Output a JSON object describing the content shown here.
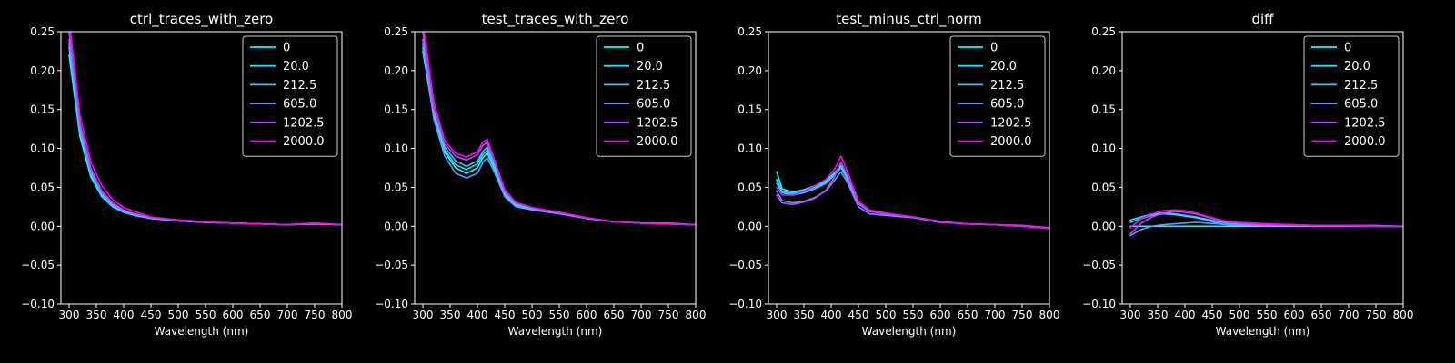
{
  "chart_data": [
    {
      "type": "line",
      "title": "ctrl_traces_with_zero",
      "xlabel": "Wavelength (nm)",
      "ylabel": "",
      "xlim": [
        285,
        800
      ],
      "ylim": [
        -0.1,
        0.25
      ],
      "xticks": [
        300,
        350,
        400,
        450,
        500,
        550,
        600,
        650,
        700,
        750,
        800
      ],
      "xtick_labels": [
        "300",
        "350",
        "400",
        "450",
        "500",
        "550",
        "600",
        "650",
        "700",
        "750",
        "800"
      ],
      "yticks": [
        -0.1,
        -0.05,
        0.0,
        0.05,
        0.1,
        0.15,
        0.2,
        0.25
      ],
      "ytick_labels": [
        "−0.10",
        "−0.05",
        "0.00",
        "0.05",
        "0.10",
        "0.15",
        "0.20",
        "0.25"
      ],
      "legend_position": "top-right",
      "x": [
        300,
        320,
        340,
        360,
        380,
        400,
        420,
        450,
        500,
        550,
        600,
        650,
        700,
        750,
        800
      ],
      "series": [
        {
          "name": "0",
          "color": "#00ffff",
          "values": [
            0.22,
            0.115,
            0.063,
            0.038,
            0.025,
            0.018,
            0.014,
            0.01,
            0.007,
            0.005,
            0.004,
            0.003,
            0.002,
            0.003,
            0.002
          ]
        },
        {
          "name": "20.0",
          "color": "#1ce3ff",
          "values": [
            0.23,
            0.12,
            0.066,
            0.04,
            0.026,
            0.019,
            0.015,
            0.01,
            0.007,
            0.005,
            0.004,
            0.003,
            0.002,
            0.003,
            0.002
          ]
        },
        {
          "name": "212.5",
          "color": "#39c6ff",
          "values": [
            0.235,
            0.123,
            0.068,
            0.041,
            0.027,
            0.019,
            0.015,
            0.011,
            0.007,
            0.005,
            0.004,
            0.003,
            0.002,
            0.003,
            0.002
          ]
        },
        {
          "name": "605.0",
          "color": "#6e91ff",
          "values": [
            0.24,
            0.126,
            0.07,
            0.042,
            0.028,
            0.02,
            0.016,
            0.011,
            0.008,
            0.005,
            0.004,
            0.003,
            0.002,
            0.003,
            0.002
          ]
        },
        {
          "name": "1202.5",
          "color": "#b24dff",
          "values": [
            0.25,
            0.132,
            0.074,
            0.045,
            0.03,
            0.021,
            0.016,
            0.011,
            0.008,
            0.005,
            0.004,
            0.003,
            0.002,
            0.004,
            0.002
          ]
        },
        {
          "name": "2000.0",
          "color": "#ff00ff",
          "values": [
            0.265,
            0.142,
            0.082,
            0.052,
            0.034,
            0.024,
            0.019,
            0.012,
            0.008,
            0.006,
            0.004,
            0.003,
            0.002,
            0.004,
            0.002
          ]
        }
      ]
    },
    {
      "type": "line",
      "title": "test_traces_with_zero",
      "xlabel": "Wavelength (nm)",
      "ylabel": "",
      "xlim": [
        285,
        800
      ],
      "ylim": [
        -0.1,
        0.25
      ],
      "xticks": [
        300,
        350,
        400,
        450,
        500,
        550,
        600,
        650,
        700,
        750,
        800
      ],
      "xtick_labels": [
        "300",
        "350",
        "400",
        "450",
        "500",
        "550",
        "600",
        "650",
        "700",
        "750",
        "800"
      ],
      "yticks": [
        -0.1,
        -0.05,
        0.0,
        0.05,
        0.1,
        0.15,
        0.2,
        0.25
      ],
      "ytick_labels": [
        "−0.10",
        "−0.05",
        "0.00",
        "0.05",
        "0.10",
        "0.15",
        "0.20",
        "0.25"
      ],
      "legend_position": "top-right",
      "x": [
        300,
        320,
        340,
        360,
        380,
        400,
        410,
        418,
        430,
        450,
        470,
        500,
        550,
        600,
        650,
        700,
        750,
        800
      ],
      "series": [
        {
          "name": "0",
          "color": "#00ffff",
          "values": [
            0.225,
            0.14,
            0.095,
            0.075,
            0.068,
            0.075,
            0.088,
            0.094,
            0.075,
            0.04,
            0.027,
            0.022,
            0.017,
            0.01,
            0.006,
            0.004,
            0.003,
            0.002
          ]
        },
        {
          "name": "20.0",
          "color": "#1ce3ff",
          "values": [
            0.23,
            0.145,
            0.098,
            0.079,
            0.073,
            0.08,
            0.092,
            0.098,
            0.078,
            0.042,
            0.028,
            0.022,
            0.017,
            0.01,
            0.006,
            0.004,
            0.003,
            0.002
          ]
        },
        {
          "name": "212.5",
          "color": "#39c6ff",
          "values": [
            0.235,
            0.15,
            0.102,
            0.084,
            0.077,
            0.084,
            0.096,
            0.102,
            0.081,
            0.044,
            0.029,
            0.023,
            0.017,
            0.01,
            0.006,
            0.004,
            0.003,
            0.002
          ]
        },
        {
          "name": "605.0",
          "color": "#6e91ff",
          "values": [
            0.24,
            0.138,
            0.09,
            0.068,
            0.062,
            0.068,
            0.082,
            0.088,
            0.071,
            0.038,
            0.025,
            0.021,
            0.016,
            0.01,
            0.006,
            0.004,
            0.004,
            0.002
          ]
        },
        {
          "name": "1202.5",
          "color": "#b24dff",
          "values": [
            0.25,
            0.152,
            0.106,
            0.09,
            0.085,
            0.092,
            0.104,
            0.108,
            0.085,
            0.045,
            0.03,
            0.024,
            0.018,
            0.011,
            0.006,
            0.004,
            0.003,
            0.002
          ]
        },
        {
          "name": "2000.0",
          "color": "#ff00ff",
          "values": [
            0.262,
            0.16,
            0.11,
            0.094,
            0.089,
            0.096,
            0.108,
            0.112,
            0.088,
            0.047,
            0.031,
            0.024,
            0.018,
            0.011,
            0.006,
            0.004,
            0.003,
            0.002
          ]
        }
      ]
    },
    {
      "type": "line",
      "title": "test_minus_ctrl_norm",
      "xlabel": "Wavelength (nm)",
      "ylabel": "",
      "xlim": [
        285,
        800
      ],
      "ylim": [
        -0.1,
        0.25
      ],
      "xticks": [
        300,
        350,
        400,
        450,
        500,
        550,
        600,
        650,
        700,
        750,
        800
      ],
      "xtick_labels": [
        "300",
        "350",
        "400",
        "450",
        "500",
        "550",
        "600",
        "650",
        "700",
        "750",
        "800"
      ],
      "yticks": [
        -0.1,
        -0.05,
        0.0,
        0.05,
        0.1,
        0.15,
        0.2,
        0.25
      ],
      "ytick_labels": [
        "−0.10",
        "−0.05",
        "0.00",
        "0.05",
        "0.10",
        "0.15",
        "0.20",
        "0.25"
      ],
      "legend_position": "top-right",
      "x": [
        300,
        310,
        330,
        350,
        370,
        390,
        405,
        418,
        430,
        450,
        470,
        500,
        550,
        600,
        650,
        700,
        750,
        800
      ],
      "series": [
        {
          "name": "0",
          "color": "#00ffff",
          "values": [
            0.07,
            0.048,
            0.044,
            0.047,
            0.052,
            0.058,
            0.068,
            0.078,
            0.062,
            0.03,
            0.02,
            0.016,
            0.012,
            0.006,
            0.003,
            0.002,
            0.0,
            -0.002
          ]
        },
        {
          "name": "20.0",
          "color": "#1ce3ff",
          "values": [
            0.06,
            0.045,
            0.042,
            0.045,
            0.05,
            0.056,
            0.066,
            0.076,
            0.06,
            0.029,
            0.019,
            0.016,
            0.012,
            0.006,
            0.003,
            0.002,
            0.0,
            -0.002
          ]
        },
        {
          "name": "212.5",
          "color": "#39c6ff",
          "values": [
            0.055,
            0.043,
            0.04,
            0.043,
            0.048,
            0.055,
            0.065,
            0.075,
            0.06,
            0.029,
            0.019,
            0.016,
            0.012,
            0.006,
            0.003,
            0.002,
            0.0,
            -0.002
          ]
        },
        {
          "name": "605.0",
          "color": "#6e91ff",
          "values": [
            0.045,
            0.033,
            0.03,
            0.032,
            0.037,
            0.045,
            0.058,
            0.07,
            0.056,
            0.025,
            0.016,
            0.014,
            0.011,
            0.005,
            0.003,
            0.002,
            0.001,
            -0.002
          ]
        },
        {
          "name": "1202.5",
          "color": "#b24dff",
          "values": [
            0.04,
            0.03,
            0.028,
            0.031,
            0.036,
            0.046,
            0.062,
            0.082,
            0.065,
            0.03,
            0.019,
            0.016,
            0.012,
            0.006,
            0.003,
            0.002,
            0.001,
            -0.002
          ]
        },
        {
          "name": "2000.0",
          "color": "#ff00ff",
          "values": [
            0.05,
            0.04,
            0.04,
            0.045,
            0.052,
            0.06,
            0.072,
            0.09,
            0.07,
            0.032,
            0.021,
            0.017,
            0.012,
            0.006,
            0.003,
            0.002,
            0.0,
            -0.003
          ]
        }
      ]
    },
    {
      "type": "line",
      "title": "diff",
      "xlabel": "Wavelength (nm)",
      "ylabel": "",
      "xlim": [
        285,
        800
      ],
      "ylim": [
        -0.1,
        0.25
      ],
      "xticks": [
        300,
        350,
        400,
        450,
        500,
        550,
        600,
        650,
        700,
        750,
        800
      ],
      "xtick_labels": [
        "300",
        "350",
        "400",
        "450",
        "500",
        "550",
        "600",
        "650",
        "700",
        "750",
        "800"
      ],
      "yticks": [
        -0.1,
        -0.05,
        0.0,
        0.05,
        0.1,
        0.15,
        0.2,
        0.25
      ],
      "ytick_labels": [
        "−0.10",
        "−0.05",
        "0.00",
        "0.05",
        "0.10",
        "0.15",
        "0.20",
        "0.25"
      ],
      "legend_position": "top-right",
      "x": [
        300,
        320,
        340,
        360,
        380,
        400,
        420,
        440,
        460,
        480,
        500,
        550,
        600,
        650,
        700,
        750,
        800
      ],
      "series": [
        {
          "name": "0",
          "color": "#00ffff",
          "values": [
            0.0,
            0.0,
            0.0,
            0.0,
            0.0,
            0.0,
            0.0,
            0.0,
            0.0,
            0.0,
            0.0,
            0.0,
            0.0,
            0.0,
            0.0,
            0.0,
            0.0
          ]
        },
        {
          "name": "20.0",
          "color": "#1ce3ff",
          "values": [
            0.008,
            0.012,
            0.016,
            0.017,
            0.016,
            0.014,
            0.012,
            0.009,
            0.006,
            0.004,
            0.003,
            0.002,
            0.001,
            0.001,
            0.001,
            0.0,
            0.0
          ]
        },
        {
          "name": "212.5",
          "color": "#39c6ff",
          "values": [
            0.005,
            0.01,
            0.014,
            0.016,
            0.015,
            0.013,
            0.011,
            0.008,
            0.004,
            0.002,
            0.002,
            0.001,
            0.001,
            0.001,
            0.0,
            0.0,
            0.0
          ]
        },
        {
          "name": "605.0",
          "color": "#6e91ff",
          "values": [
            -0.012,
            -0.004,
            0.0,
            0.002,
            0.003,
            0.004,
            0.005,
            0.004,
            0.003,
            0.002,
            0.002,
            0.001,
            0.001,
            0.001,
            0.001,
            0.001,
            0.0
          ]
        },
        {
          "name": "1202.5",
          "color": "#b24dff",
          "values": [
            -0.01,
            0.004,
            0.012,
            0.017,
            0.019,
            0.018,
            0.016,
            0.012,
            0.008,
            0.005,
            0.004,
            0.002,
            0.001,
            0.001,
            0.001,
            0.0,
            0.0
          ]
        },
        {
          "name": "2000.0",
          "color": "#ff00ff",
          "values": [
            -0.002,
            0.01,
            0.016,
            0.02,
            0.021,
            0.02,
            0.017,
            0.013,
            0.009,
            0.006,
            0.005,
            0.003,
            0.002,
            0.001,
            0.001,
            0.0,
            0.0
          ]
        }
      ]
    }
  ]
}
